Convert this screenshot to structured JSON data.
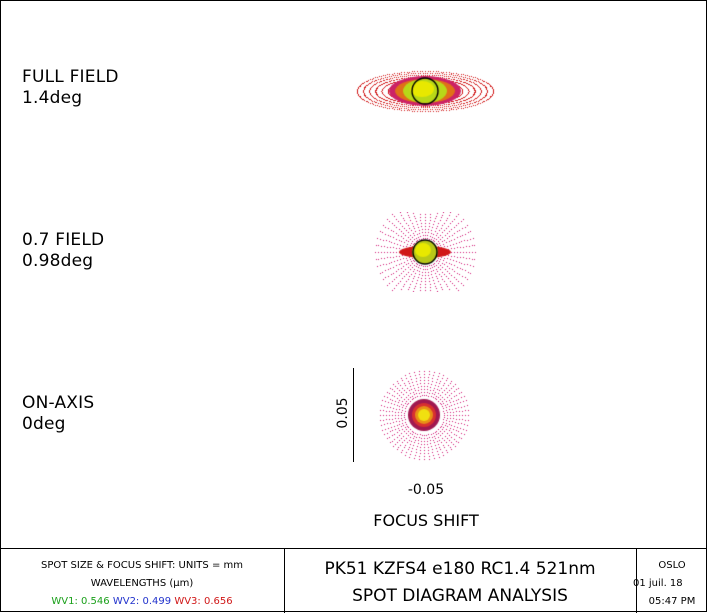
{
  "fields": [
    {
      "name": "FULL FIELD",
      "angle": "1.4deg"
    },
    {
      "name": "0.7 FIELD",
      "angle": "0.98deg"
    },
    {
      "name": "ON-AXIS",
      "angle": "0deg"
    }
  ],
  "scale": {
    "y_label": "0.05",
    "focus_value": "-0.05",
    "focus_label": "FOCUS SHIFT"
  },
  "footer": {
    "left": {
      "line1": "SPOT SIZE & FOCUS SHIFT: UNITS = mm",
      "line2": "WAVELENGTHS (µm)",
      "wavelengths": [
        {
          "label": "WV1:",
          "value": "0.546",
          "color": "#1aa01a"
        },
        {
          "label": "WV2:",
          "value": "0.499",
          "color": "#2233cc"
        },
        {
          "label": "WV3:",
          "value": "0.656",
          "color": "#d01818"
        }
      ]
    },
    "middle": {
      "title": "PK51 KZFS4 e180 RC1.4 521nm",
      "subtitle": "SPOT DIAGRAM ANALYSIS"
    },
    "right": {
      "program": "OSLO",
      "date": "01 juil. 18",
      "time": "05:47 PM"
    }
  },
  "colors": {
    "wv1": "#1aa01a",
    "wv2": "#2233cc",
    "wv3": "#d01818",
    "airy_disk": "#000000",
    "spot_core": "#e8e800"
  }
}
